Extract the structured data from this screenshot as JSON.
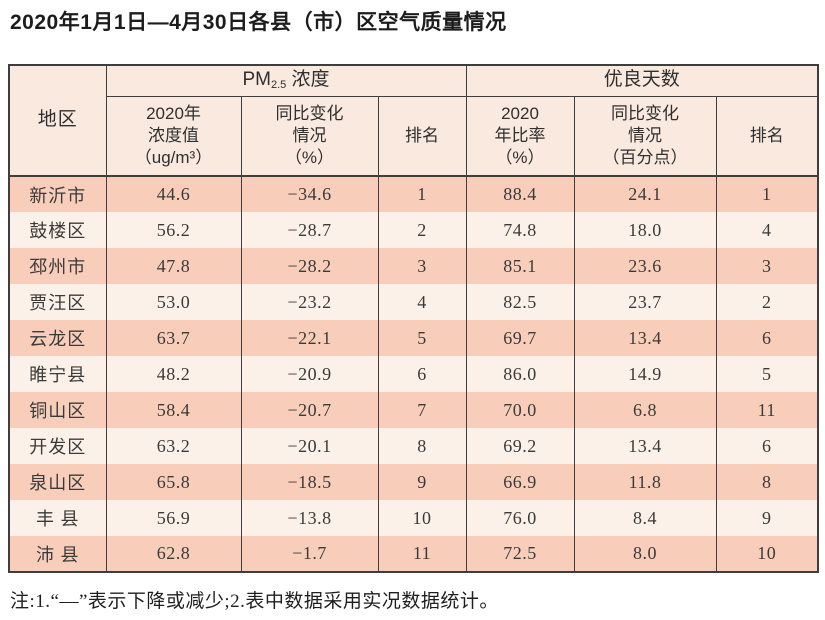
{
  "title": "2020年1月1日—4月30日各县（市）区空气质量情况",
  "table": {
    "header": {
      "region": "地区",
      "pm_group": {
        "prefix": "PM",
        "sub": "2.5",
        "suffix": " 浓度"
      },
      "good_days_group": "优良天数",
      "columns": [
        {
          "lines": [
            "2020年",
            "浓度值",
            "（ug/m³）"
          ]
        },
        {
          "lines": [
            "同比变化",
            "情况",
            "（%）"
          ]
        },
        {
          "lines": [
            "排名"
          ]
        },
        {
          "lines": [
            "2020",
            "年比率",
            "（%）"
          ]
        },
        {
          "lines": [
            "同比变化",
            "情况",
            "（百分点）"
          ]
        },
        {
          "lines": [
            "排名"
          ]
        }
      ]
    },
    "rows": [
      {
        "region": "新沂市",
        "pm_value": "44.6",
        "pm_change": "−34.6",
        "pm_rank": "1",
        "good_rate": "88.4",
        "good_change": "24.1",
        "good_rank": "1"
      },
      {
        "region": "鼓楼区",
        "pm_value": "56.2",
        "pm_change": "−28.7",
        "pm_rank": "2",
        "good_rate": "74.8",
        "good_change": "18.0",
        "good_rank": "4"
      },
      {
        "region": "邳州市",
        "pm_value": "47.8",
        "pm_change": "−28.2",
        "pm_rank": "3",
        "good_rate": "85.1",
        "good_change": "23.6",
        "good_rank": "3"
      },
      {
        "region": "贾汪区",
        "pm_value": "53.0",
        "pm_change": "−23.2",
        "pm_rank": "4",
        "good_rate": "82.5",
        "good_change": "23.7",
        "good_rank": "2"
      },
      {
        "region": "云龙区",
        "pm_value": "63.7",
        "pm_change": "−22.1",
        "pm_rank": "5",
        "good_rate": "69.7",
        "good_change": "13.4",
        "good_rank": "6"
      },
      {
        "region": "睢宁县",
        "pm_value": "48.2",
        "pm_change": "−20.9",
        "pm_rank": "6",
        "good_rate": "86.0",
        "good_change": "14.9",
        "good_rank": "5"
      },
      {
        "region": "铜山区",
        "pm_value": "58.4",
        "pm_change": "−20.7",
        "pm_rank": "7",
        "good_rate": "70.0",
        "good_change": "6.8",
        "good_rank": "11"
      },
      {
        "region": "开发区",
        "pm_value": "63.2",
        "pm_change": "−20.1",
        "pm_rank": "8",
        "good_rate": "69.2",
        "good_change": "13.4",
        "good_rank": "6"
      },
      {
        "region": "泉山区",
        "pm_value": "65.8",
        "pm_change": "−18.5",
        "pm_rank": "9",
        "good_rate": "66.9",
        "good_change": "11.8",
        "good_rank": "8"
      },
      {
        "region": "丰 县",
        "pm_value": "56.9",
        "pm_change": "−13.8",
        "pm_rank": "10",
        "good_rate": "76.0",
        "good_change": "8.4",
        "good_rank": "9"
      },
      {
        "region": "沛 县",
        "pm_value": "62.8",
        "pm_change": "−1.7",
        "pm_rank": "11",
        "good_rate": "72.5",
        "good_change": "8.0",
        "good_rank": "10"
      }
    ]
  },
  "footnote": "注:1.“—”表示下降或减少;2.表中数据采用实况数据统计。",
  "colors": {
    "border": "#3e3e3e",
    "header-bg": "#f9e9df",
    "row-odd": "#f8cebb",
    "row-even": "#fcf1e8",
    "text": "#3a3a3a"
  }
}
